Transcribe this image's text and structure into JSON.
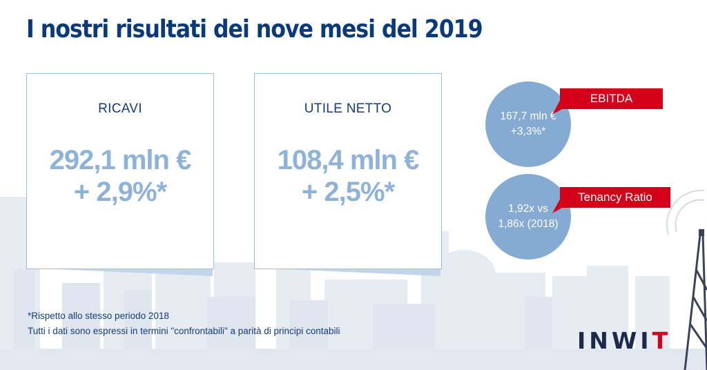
{
  "title": "I nostri risultati dei nove mesi del 2019",
  "cards": [
    {
      "label": "RICAVI",
      "value_line1": "292,1 mln €",
      "value_line2": "+ 2,9%*"
    },
    {
      "label": "UTILE NETTO",
      "value_line1": "108,4 mln €",
      "value_line2": "+ 2,5%*"
    }
  ],
  "kpis": [
    {
      "tag": "EBITDA",
      "line1": "167,7 mln €",
      "line2": "+3,3%*"
    },
    {
      "tag": "Tenancy Ratio",
      "line1": "1,92x vs",
      "line2": "1,86x (2018)"
    }
  ],
  "footnotes": [
    "*Rispetto allo stesso periodo 2018",
    "Tutti i dati sono espressi in termini \"confrontabili\" a parità di principi contabili"
  ],
  "logo": {
    "text_left": "INWI",
    "text_right": "T"
  },
  "colors": {
    "title": "#0a3a7a",
    "value": "#8fb2d8",
    "circle": "#86abd2",
    "tag": "#d4001a",
    "skyline": "#e6ebf2"
  },
  "icons": {
    "background": "city-skyline-illustration",
    "tower": "antenna-tower-icon"
  }
}
